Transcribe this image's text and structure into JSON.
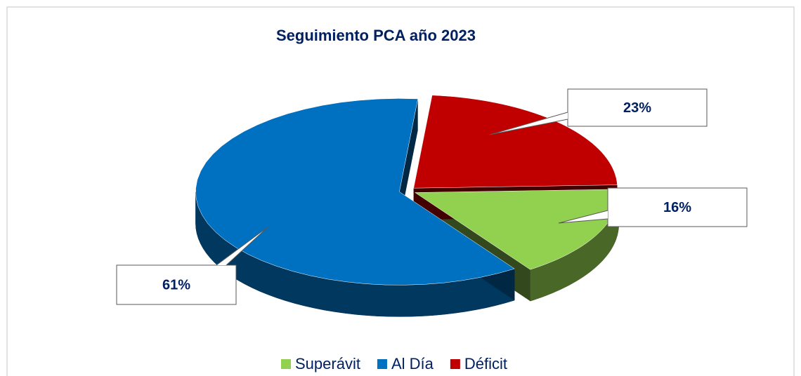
{
  "chart_data": {
    "type": "pie3d",
    "title": "Seguimiento PCA año 2023",
    "categories": [
      "Superávit",
      "Al Día",
      "Déficit"
    ],
    "values": [
      16,
      61,
      23
    ],
    "value_labels": [
      "16%",
      "61%",
      "23%"
    ],
    "colors": [
      "#92d050",
      "#0070c0",
      "#c00000"
    ],
    "legend": "bottom"
  }
}
